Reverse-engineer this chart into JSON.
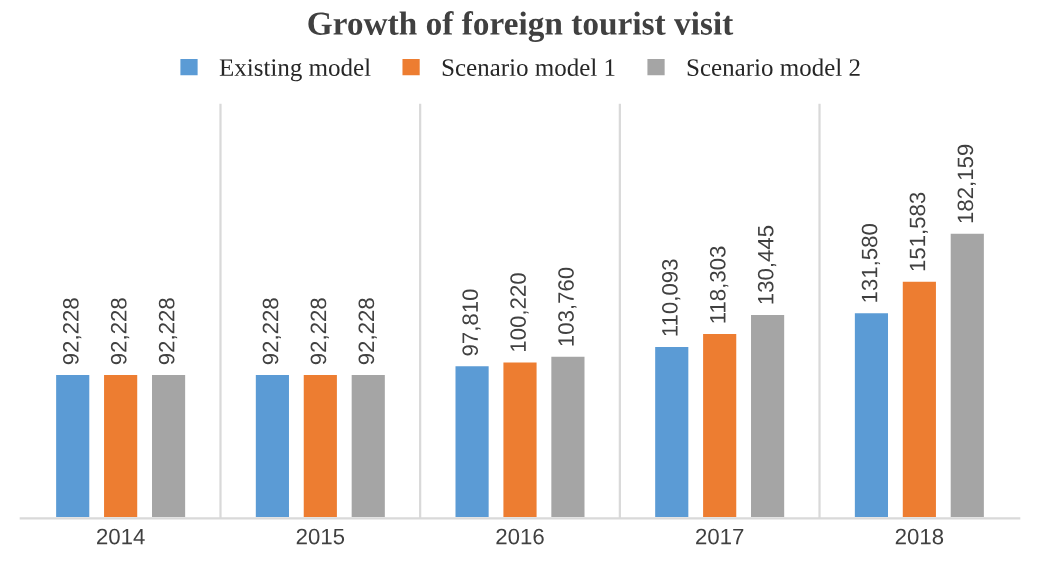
{
  "chart_data": {
    "type": "bar",
    "title": "Growth of foreign tourist visit",
    "categories": [
      "2014",
      "2015",
      "2016",
      "2017",
      "2018"
    ],
    "series": [
      {
        "name": "Existing model",
        "color": "#5b9bd5",
        "values": [
          92228,
          92228,
          97810,
          110093,
          131580
        ],
        "value_labels": [
          "92,228",
          "92,228",
          "97,810",
          "110,093",
          "131,580"
        ]
      },
      {
        "name": "Scenario model 1",
        "color": "#ed7d31",
        "values": [
          92228,
          92228,
          100220,
          118303,
          151583
        ],
        "value_labels": [
          "92,228",
          "92,228",
          "100,220",
          "118,303",
          "151,583"
        ]
      },
      {
        "name": "Scenario model 2",
        "color": "#a5a5a5",
        "values": [
          92228,
          92228,
          103760,
          130445,
          182159
        ],
        "value_labels": [
          "92,228",
          "92,228",
          "103,760",
          "130,445",
          "182,159"
        ]
      }
    ],
    "legend": "top",
    "grid": "x",
    "tick_labels": "x"
  }
}
